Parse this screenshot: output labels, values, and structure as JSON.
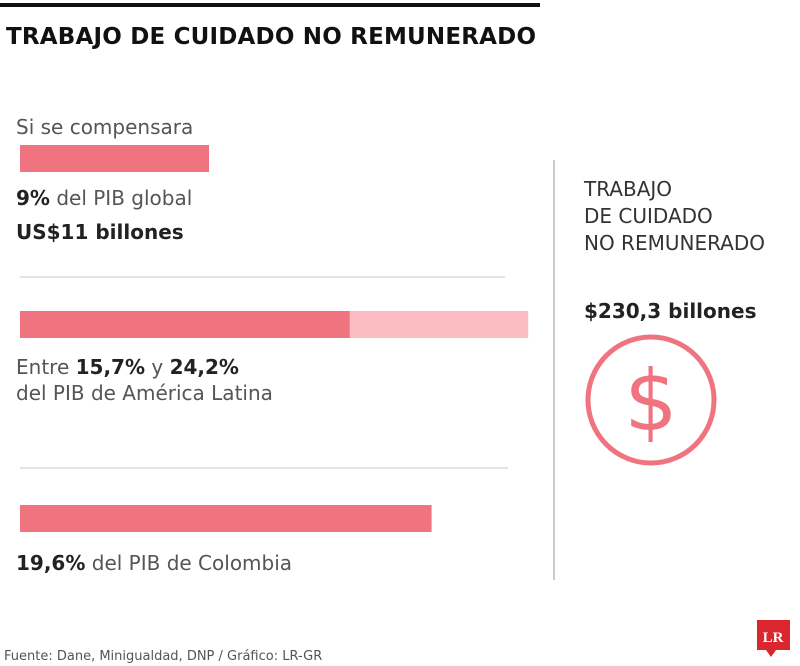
{
  "header": {
    "title": "TRABAJO DE CUIDADO NO REMUNERADO"
  },
  "panels": [
    {
      "intro": "Si se compensara",
      "bar": {
        "values": [
          9
        ],
        "value_labels": [
          "9%"
        ]
      },
      "caption": " del PIB global",
      "amount": "US$11 billones"
    },
    {
      "bar": {
        "values": [
          15.7,
          24.2
        ],
        "value_labels": [
          "15,7%",
          "24,2%"
        ]
      },
      "caption_start": "Entre ",
      "caption_mid": " y ",
      "caption_end": "del PIB de América Latina"
    },
    {
      "bar": {
        "values": [
          19.6
        ],
        "value_labels": [
          "19,6%"
        ]
      },
      "caption": " del PIB de Colombia"
    }
  ],
  "side": {
    "title_lines": [
      "TRABAJO",
      "DE CUIDADO",
      "NO REMUNERADO"
    ],
    "amount": "$230,3 billones",
    "icon_symbol": "$"
  },
  "footer": {
    "source": "Fuente: Dane, Minigualdad, DNP / Gráfico: LR-GR",
    "logo": "LR"
  }
}
